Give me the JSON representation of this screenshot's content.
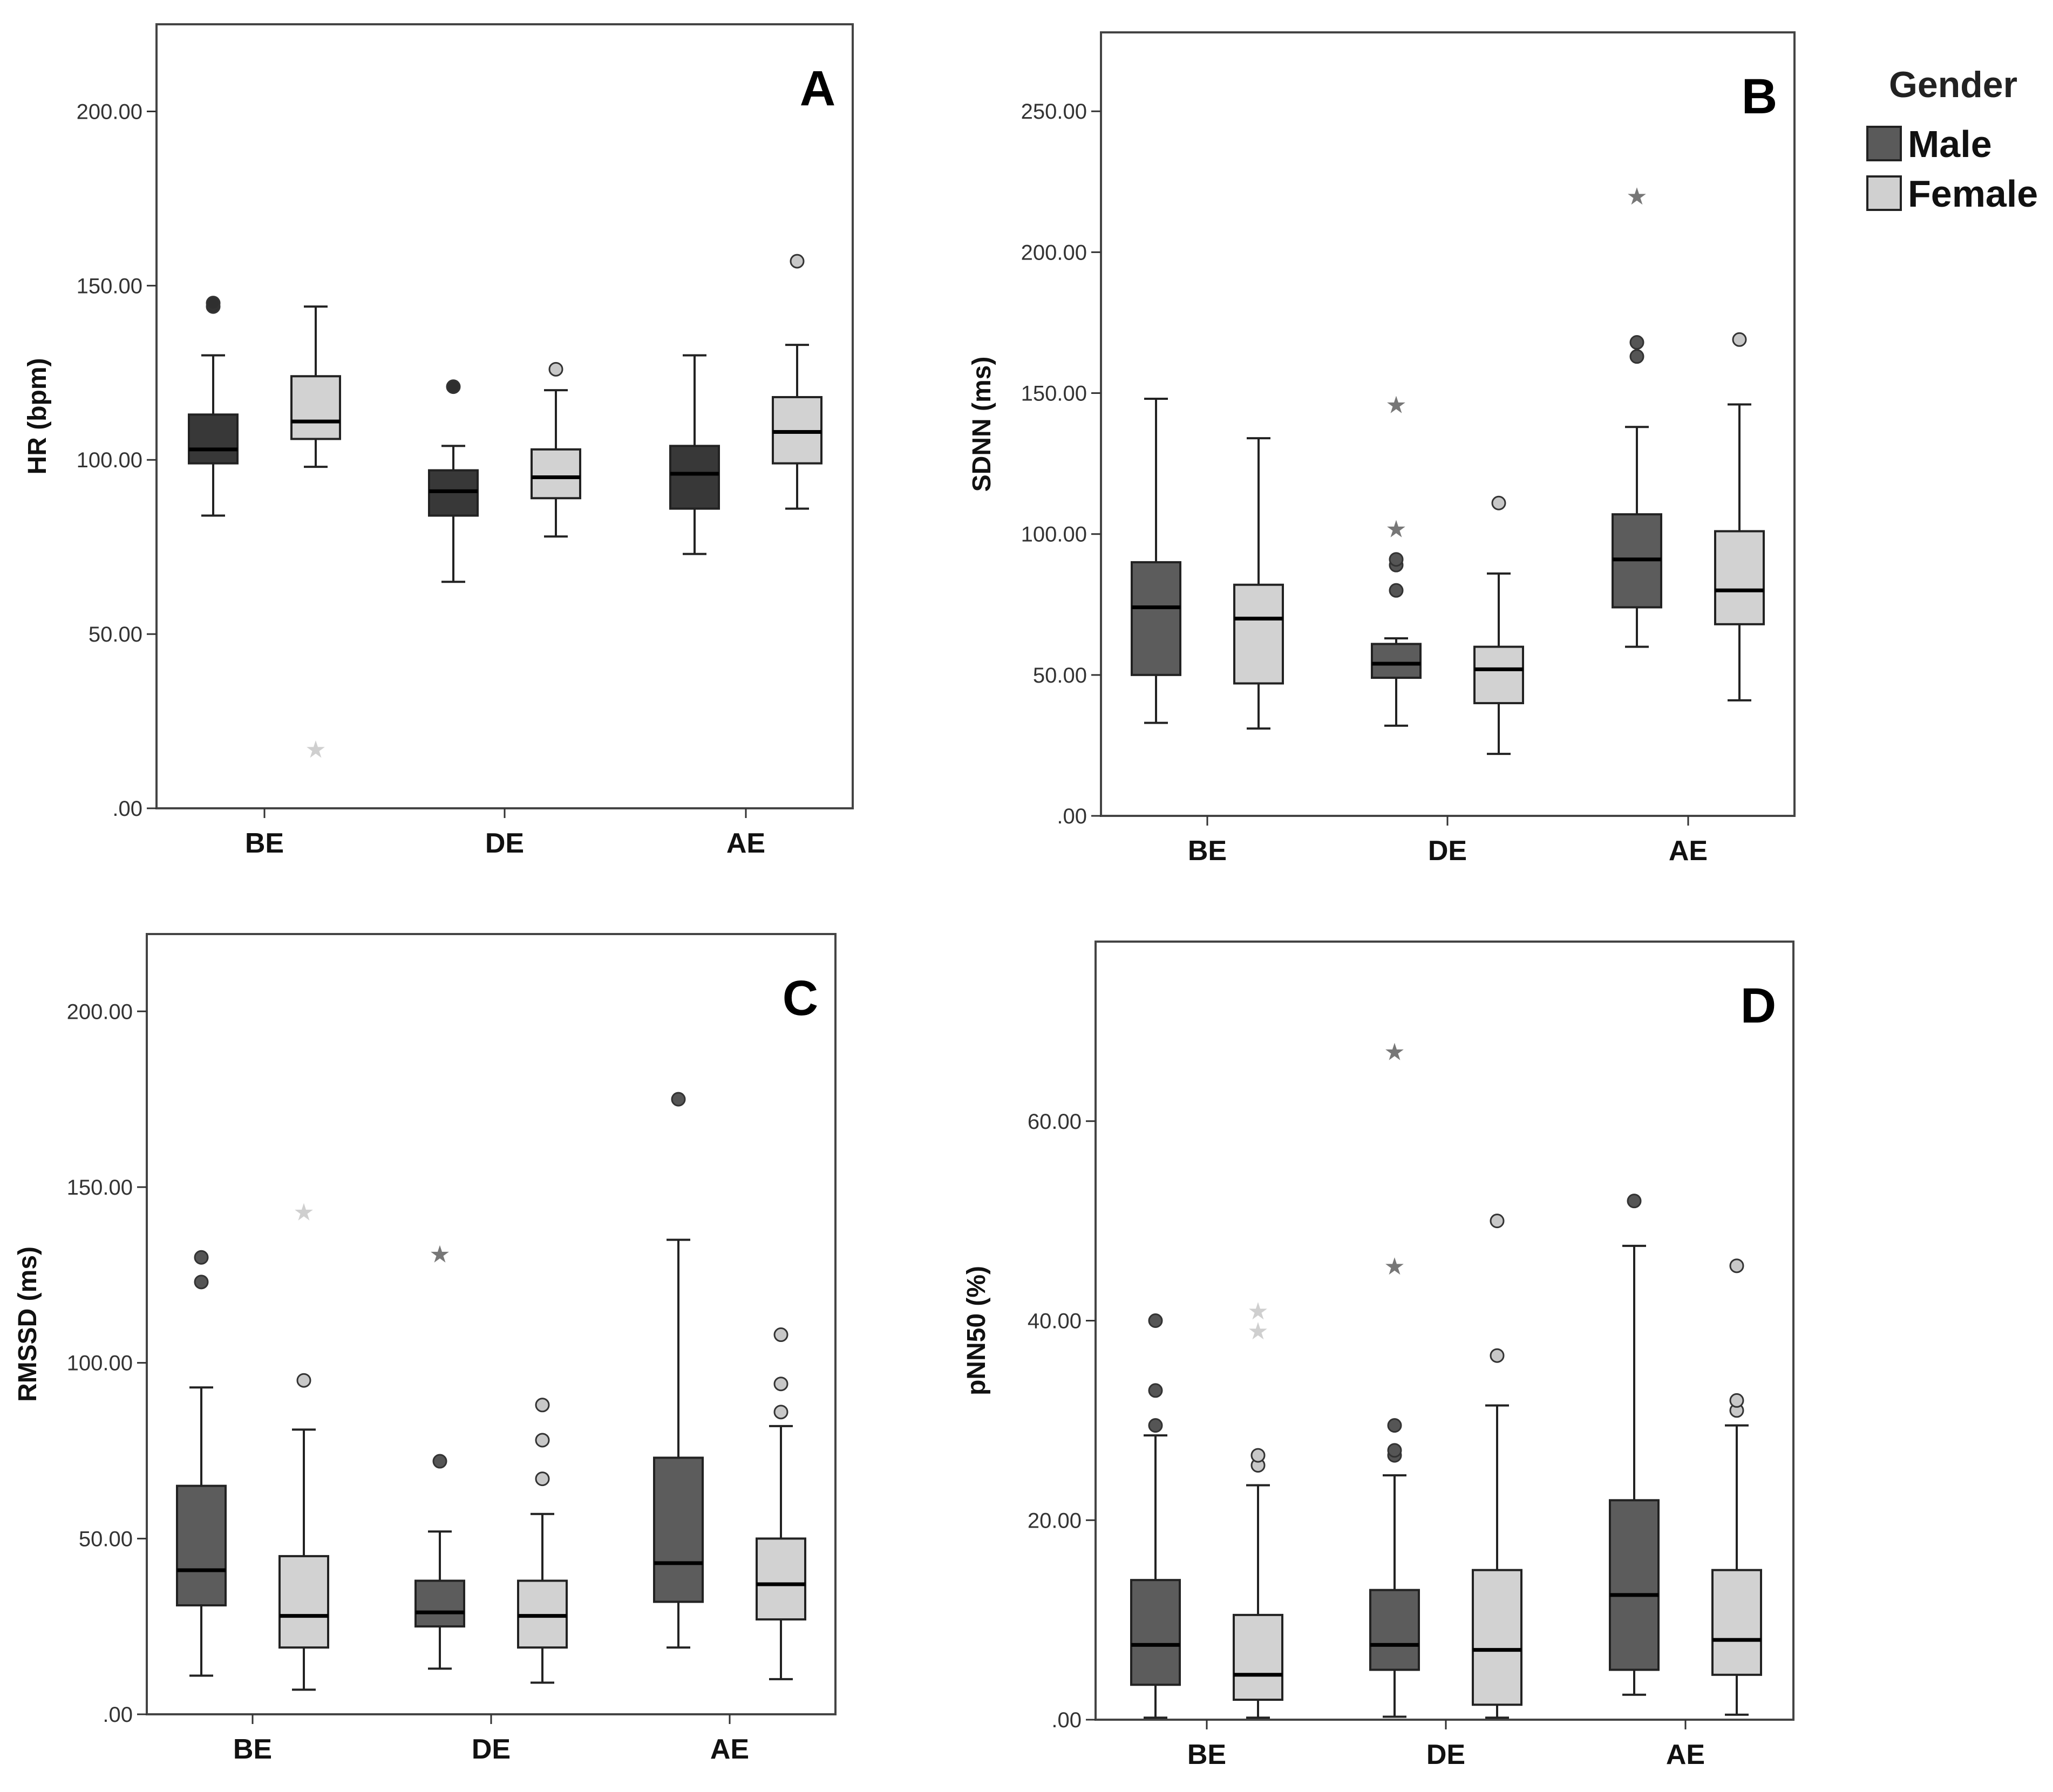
{
  "legend": {
    "title": "Gender",
    "items": [
      {
        "label": "Male",
        "color": "#5a5a5a"
      },
      {
        "label": "Female",
        "color": "#d0d0d0"
      }
    ]
  },
  "chart_data": [
    {
      "panel": "A",
      "type": "box",
      "ylabel": "HR (bpm)",
      "ylim": [
        0,
        225
      ],
      "yticks": [
        0,
        50,
        100,
        150,
        200
      ],
      "ytick_labels": [
        ".00",
        "50.00",
        "100.00",
        "150.00",
        "200.00"
      ],
      "categories": [
        "BE",
        "DE",
        "AE"
      ],
      "male_color": "#383838",
      "female_color": "#d2d2d2",
      "series": [
        {
          "name": "Male",
          "boxes": [
            {
              "min": 84,
              "q1": 99,
              "median": 103,
              "q3": 113,
              "max": 130,
              "outliers": [
                144,
                145
              ],
              "extremes": []
            },
            {
              "min": 65,
              "q1": 84,
              "median": 91,
              "q3": 97,
              "max": 104,
              "outliers": [
                121
              ],
              "extremes": []
            },
            {
              "min": 73,
              "q1": 86,
              "median": 96,
              "q3": 104,
              "max": 130,
              "outliers": [],
              "extremes": []
            }
          ]
        },
        {
          "name": "Female",
          "boxes": [
            {
              "min": 98,
              "q1": 106,
              "median": 111,
              "q3": 124,
              "max": 144,
              "outliers": [],
              "extremes": [
                17
              ]
            },
            {
              "min": 78,
              "q1": 89,
              "median": 95,
              "q3": 103,
              "max": 120,
              "outliers": [
                126
              ],
              "extremes": []
            },
            {
              "min": 86,
              "q1": 99,
              "median": 108,
              "q3": 118,
              "max": 133,
              "outliers": [
                157
              ],
              "extremes": []
            }
          ]
        }
      ]
    },
    {
      "panel": "B",
      "type": "box",
      "ylabel": "SDNN (ms)",
      "ylim": [
        0,
        278
      ],
      "yticks": [
        0,
        50,
        100,
        150,
        200,
        250
      ],
      "ytick_labels": [
        ".00",
        "50.00",
        "100.00",
        "150.00",
        "200.00",
        "250.00"
      ],
      "categories": [
        "BE",
        "DE",
        "AE"
      ],
      "male_color": "#5c5c5c",
      "female_color": "#d2d2d2",
      "series": [
        {
          "name": "Male",
          "boxes": [
            {
              "min": 33,
              "q1": 50,
              "median": 74,
              "q3": 90,
              "max": 148,
              "outliers": [],
              "extremes": []
            },
            {
              "min": 32,
              "q1": 49,
              "median": 54,
              "q3": 61,
              "max": 63,
              "outliers": [
                80,
                89,
                91
              ],
              "extremes": [
                102,
                146
              ]
            },
            {
              "min": 60,
              "q1": 74,
              "median": 91,
              "q3": 107,
              "max": 138,
              "outliers": [
                163,
                168
              ],
              "extremes": [
                220
              ]
            }
          ]
        },
        {
          "name": "Female",
          "boxes": [
            {
              "min": 31,
              "q1": 47,
              "median": 70,
              "q3": 82,
              "max": 134,
              "outliers": [],
              "extremes": []
            },
            {
              "min": 22,
              "q1": 40,
              "median": 52,
              "q3": 60,
              "max": 86,
              "outliers": [
                111
              ],
              "extremes": []
            },
            {
              "min": 41,
              "q1": 68,
              "median": 80,
              "q3": 101,
              "max": 146,
              "outliers": [
                169
              ],
              "extremes": []
            }
          ]
        }
      ]
    },
    {
      "panel": "C",
      "type": "box",
      "ylabel": "RMSSD (ms)",
      "ylim": [
        0,
        222
      ],
      "yticks": [
        0,
        50,
        100,
        150,
        200
      ],
      "ytick_labels": [
        ".00",
        "50.00",
        "100.00",
        "150.00",
        "200.00"
      ],
      "categories": [
        "BE",
        "DE",
        "AE"
      ],
      "male_color": "#5c5c5c",
      "female_color": "#d2d2d2",
      "series": [
        {
          "name": "Male",
          "boxes": [
            {
              "min": 11,
              "q1": 31,
              "median": 41,
              "q3": 65,
              "max": 93,
              "outliers": [
                123,
                130
              ],
              "extremes": []
            },
            {
              "min": 13,
              "q1": 25,
              "median": 29,
              "q3": 38,
              "max": 52,
              "outliers": [
                72
              ],
              "extremes": [
                131
              ]
            },
            {
              "min": 19,
              "q1": 32,
              "median": 43,
              "q3": 73,
              "max": 135,
              "outliers": [
                175
              ],
              "extremes": []
            }
          ]
        },
        {
          "name": "Female",
          "boxes": [
            {
              "min": 7,
              "q1": 19,
              "median": 28,
              "q3": 45,
              "max": 81,
              "outliers": [
                95
              ],
              "extremes": [
                143
              ]
            },
            {
              "min": 9,
              "q1": 19,
              "median": 28,
              "q3": 38,
              "max": 57,
              "outliers": [
                67,
                78,
                88
              ],
              "extremes": []
            },
            {
              "min": 10,
              "q1": 27,
              "median": 37,
              "q3": 50,
              "max": 82,
              "outliers": [
                86,
                94,
                108
              ],
              "extremes": []
            }
          ]
        }
      ]
    },
    {
      "panel": "D",
      "type": "box",
      "ylabel": "pNN50 (%)",
      "ylim": [
        0,
        78
      ],
      "yticks": [
        0,
        20,
        40,
        60
      ],
      "ytick_labels": [
        ".00",
        "20.00",
        "40.00",
        "60.00"
      ],
      "categories": [
        "BE",
        "DE",
        "AE"
      ],
      "male_color": "#5c5c5c",
      "female_color": "#d2d2d2",
      "series": [
        {
          "name": "Male",
          "boxes": [
            {
              "min": 0.2,
              "q1": 3.5,
              "median": 7.5,
              "q3": 14,
              "max": 28.5,
              "outliers": [
                29.5,
                33,
                40
              ],
              "extremes": []
            },
            {
              "min": 0.3,
              "q1": 5,
              "median": 7.5,
              "q3": 13,
              "max": 24.5,
              "outliers": [
                26.5,
                27,
                29.5
              ],
              "extremes": [
                45.5,
                67
              ]
            },
            {
              "min": 2.5,
              "q1": 5,
              "median": 12.5,
              "q3": 22,
              "max": 47.5,
              "outliers": [
                52
              ],
              "extremes": []
            }
          ]
        },
        {
          "name": "Female",
          "boxes": [
            {
              "min": 0.2,
              "q1": 2,
              "median": 4.5,
              "q3": 10.5,
              "max": 23.5,
              "outliers": [
                25.5,
                26.5
              ],
              "extremes": [
                39,
                41
              ]
            },
            {
              "min": 0.2,
              "q1": 1.5,
              "median": 7,
              "q3": 15,
              "max": 31.5,
              "outliers": [
                36.5,
                50
              ],
              "extremes": []
            },
            {
              "min": 0.5,
              "q1": 4.5,
              "median": 8,
              "q3": 15,
              "max": 29.5,
              "outliers": [
                31,
                32,
                45.5
              ],
              "extremes": []
            }
          ]
        }
      ]
    }
  ]
}
